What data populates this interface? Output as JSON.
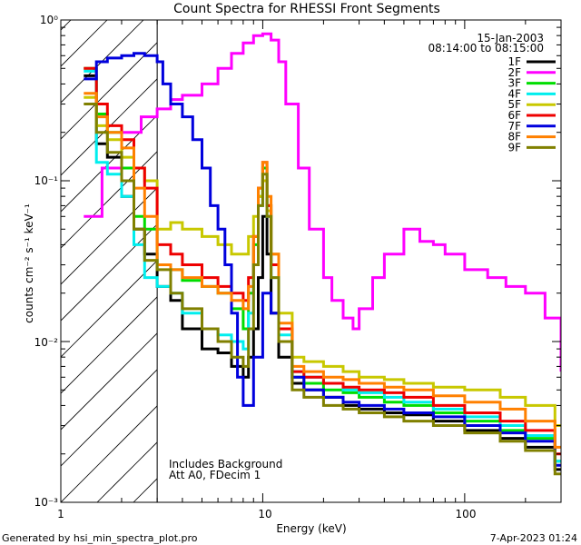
{
  "chart_data": {
    "type": "line",
    "title": "Count Spectra for RHESSI Front Segments",
    "xlabel": "Energy (keV)",
    "ylabel": "counts cm⁻² s⁻¹ keV⁻¹",
    "xscale": "log",
    "yscale": "log",
    "xlim": [
      1,
      300
    ],
    "ylim": [
      0.001,
      1
    ],
    "x_tick_labels": [
      "1",
      "10",
      "100"
    ],
    "y_tick_labels": [
      "10⁻³",
      "10⁻²",
      "10⁻¹",
      "10⁰"
    ],
    "date": "15-Jan-2003",
    "time_range": "08:14:00 to 08:15:00",
    "annotation_lines": [
      "Includes Background",
      "Att A0, FDecim 1"
    ],
    "threshold_energy": 3,
    "legend_position": "top-right",
    "series": [
      {
        "name": "1F",
        "color": "#000000",
        "x": [
          1.3,
          1.5,
          1.7,
          2,
          2.3,
          2.6,
          3,
          3.5,
          4,
          5,
          6,
          7,
          8,
          8.5,
          9,
          9.5,
          10,
          10.5,
          11,
          12,
          14,
          16,
          20,
          25,
          30,
          40,
          50,
          70,
          100,
          150,
          200,
          280
        ],
        "y": [
          0.45,
          0.17,
          0.14,
          0.08,
          0.05,
          0.035,
          0.022,
          0.018,
          0.012,
          0.009,
          0.0085,
          0.007,
          0.006,
          0.008,
          0.012,
          0.025,
          0.06,
          0.035,
          0.015,
          0.008,
          0.0055,
          0.005,
          0.0045,
          0.004,
          0.0038,
          0.0036,
          0.0035,
          0.0032,
          0.0028,
          0.0025,
          0.0022,
          0.0016
        ]
      },
      {
        "name": "2F",
        "color": "#ff00ff",
        "x": [
          1.3,
          1.6,
          2,
          2.5,
          3,
          3.5,
          4,
          5,
          6,
          7,
          8,
          9,
          10,
          11,
          12,
          13,
          15,
          17,
          20,
          22,
          25,
          28,
          30,
          35,
          40,
          50,
          60,
          70,
          80,
          100,
          130,
          160,
          200,
          250,
          300
        ],
        "y": [
          0.06,
          0.12,
          0.2,
          0.25,
          0.28,
          0.32,
          0.34,
          0.4,
          0.5,
          0.62,
          0.72,
          0.8,
          0.82,
          0.75,
          0.55,
          0.3,
          0.12,
          0.05,
          0.025,
          0.018,
          0.014,
          0.012,
          0.016,
          0.025,
          0.035,
          0.05,
          0.042,
          0.04,
          0.035,
          0.028,
          0.025,
          0.022,
          0.02,
          0.014,
          0.0065
        ]
      },
      {
        "name": "3F",
        "color": "#00dd00",
        "x": [
          1.3,
          1.5,
          1.7,
          2,
          2.3,
          2.6,
          3,
          3.5,
          4,
          5,
          6,
          7,
          8,
          8.5,
          9,
          9.5,
          10,
          10.5,
          11,
          12,
          14,
          16,
          20,
          25,
          30,
          40,
          50,
          70,
          100,
          150,
          200,
          280
        ],
        "y": [
          0.5,
          0.26,
          0.2,
          0.12,
          0.06,
          0.05,
          0.03,
          0.028,
          0.024,
          0.022,
          0.02,
          0.016,
          0.012,
          0.02,
          0.04,
          0.08,
          0.12,
          0.07,
          0.03,
          0.012,
          0.006,
          0.0055,
          0.005,
          0.0048,
          0.0045,
          0.0042,
          0.004,
          0.0036,
          0.0032,
          0.0028,
          0.0025,
          0.0018
        ]
      },
      {
        "name": "4F",
        "color": "#00eeee",
        "x": [
          1.3,
          1.5,
          1.7,
          2,
          2.3,
          2.6,
          3,
          3.5,
          4,
          5,
          6,
          7,
          8,
          8.5,
          9,
          9.5,
          10,
          10.5,
          11,
          12,
          14,
          16,
          20,
          25,
          30,
          40,
          50,
          70,
          100,
          150,
          200,
          280
        ],
        "y": [
          0.48,
          0.13,
          0.11,
          0.08,
          0.04,
          0.025,
          0.022,
          0.02,
          0.015,
          0.012,
          0.011,
          0.01,
          0.009,
          0.015,
          0.03,
          0.07,
          0.1,
          0.06,
          0.025,
          0.011,
          0.0065,
          0.006,
          0.0055,
          0.005,
          0.0048,
          0.0045,
          0.0042,
          0.0038,
          0.0034,
          0.003,
          0.0026,
          0.0018
        ]
      },
      {
        "name": "5F",
        "color": "#c8c800",
        "x": [
          1.3,
          1.5,
          1.7,
          2,
          2.3,
          2.6,
          3,
          3.5,
          4,
          5,
          6,
          7,
          8,
          8.5,
          9,
          9.5,
          10,
          10.5,
          11,
          12,
          14,
          16,
          20,
          25,
          30,
          40,
          50,
          70,
          100,
          150,
          200,
          280
        ],
        "y": [
          0.33,
          0.22,
          0.18,
          0.14,
          0.12,
          0.1,
          0.05,
          0.055,
          0.05,
          0.045,
          0.04,
          0.035,
          0.035,
          0.045,
          0.06,
          0.08,
          0.1,
          0.065,
          0.035,
          0.015,
          0.008,
          0.0075,
          0.007,
          0.0065,
          0.006,
          0.0058,
          0.0055,
          0.0052,
          0.005,
          0.0045,
          0.004,
          0.003
        ]
      },
      {
        "name": "6F",
        "color": "#ee0000",
        "x": [
          1.3,
          1.5,
          1.7,
          2,
          2.3,
          2.6,
          3,
          3.5,
          4,
          5,
          6,
          7,
          8,
          8.5,
          9,
          9.5,
          10,
          10.5,
          11,
          12,
          14,
          16,
          20,
          25,
          30,
          40,
          50,
          70,
          100,
          150,
          200,
          280
        ],
        "y": [
          0.5,
          0.3,
          0.22,
          0.18,
          0.12,
          0.09,
          0.04,
          0.035,
          0.03,
          0.025,
          0.022,
          0.02,
          0.018,
          0.025,
          0.045,
          0.09,
          0.13,
          0.07,
          0.03,
          0.012,
          0.0065,
          0.006,
          0.0055,
          0.0052,
          0.005,
          0.0048,
          0.0045,
          0.004,
          0.0036,
          0.0032,
          0.0028,
          0.002
        ]
      },
      {
        "name": "7F",
        "color": "#0000dd",
        "x": [
          1.3,
          1.5,
          1.7,
          2,
          2.3,
          2.6,
          3,
          3.2,
          3.5,
          4,
          4.5,
          5,
          5.5,
          6,
          6.5,
          7,
          7.5,
          8,
          9,
          10,
          11,
          12,
          14,
          16,
          20,
          25,
          30,
          40,
          50,
          70,
          100,
          150,
          200,
          280
        ],
        "y": [
          0.43,
          0.55,
          0.58,
          0.6,
          0.62,
          0.6,
          0.55,
          0.4,
          0.3,
          0.25,
          0.18,
          0.12,
          0.07,
          0.05,
          0.03,
          0.015,
          0.006,
          0.004,
          0.008,
          0.02,
          0.015,
          0.01,
          0.006,
          0.005,
          0.0045,
          0.0042,
          0.004,
          0.0038,
          0.0036,
          0.0034,
          0.003,
          0.0027,
          0.0024,
          0.0017
        ]
      },
      {
        "name": "8F",
        "color": "#ff8000",
        "x": [
          1.3,
          1.5,
          1.7,
          2,
          2.3,
          2.6,
          3,
          3.5,
          4,
          5,
          6,
          7,
          8,
          8.5,
          9,
          9.5,
          10,
          10.5,
          11,
          12,
          14,
          16,
          20,
          25,
          30,
          40,
          50,
          70,
          100,
          150,
          200,
          280
        ],
        "y": [
          0.35,
          0.25,
          0.2,
          0.16,
          0.09,
          0.06,
          0.03,
          0.028,
          0.025,
          0.022,
          0.02,
          0.018,
          0.016,
          0.022,
          0.045,
          0.09,
          0.13,
          0.08,
          0.035,
          0.013,
          0.007,
          0.0065,
          0.006,
          0.0058,
          0.0055,
          0.0052,
          0.005,
          0.0046,
          0.0042,
          0.0038,
          0.0032,
          0.0022
        ]
      },
      {
        "name": "9F",
        "color": "#808000",
        "x": [
          1.3,
          1.5,
          1.7,
          2,
          2.3,
          2.6,
          3,
          3.5,
          4,
          5,
          6,
          7,
          8,
          8.5,
          9,
          9.5,
          10,
          10.5,
          11,
          12,
          14,
          16,
          20,
          25,
          30,
          40,
          50,
          70,
          100,
          150,
          200,
          280
        ],
        "y": [
          0.3,
          0.2,
          0.15,
          0.1,
          0.05,
          0.032,
          0.028,
          0.02,
          0.016,
          0.012,
          0.01,
          0.008,
          0.007,
          0.012,
          0.03,
          0.07,
          0.11,
          0.06,
          0.025,
          0.01,
          0.005,
          0.0045,
          0.004,
          0.0038,
          0.0036,
          0.0034,
          0.0032,
          0.003,
          0.0027,
          0.0024,
          0.0021,
          0.0015
        ]
      }
    ]
  },
  "footer": {
    "generated_by": "Generated by hsi_min_spectra_plot.pro",
    "timestamp": "7-Apr-2023 01:24"
  }
}
